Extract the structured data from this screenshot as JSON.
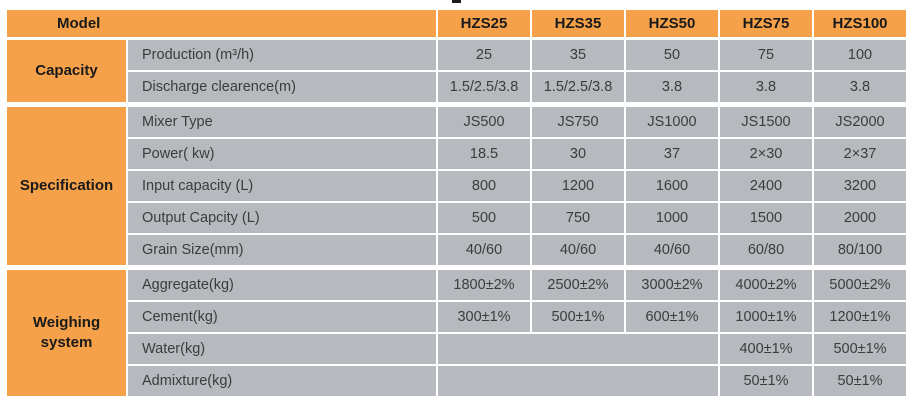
{
  "colors": {
    "orange": "#F5A149",
    "cell_gray": "#B6B9BD",
    "divider_white": "#FFFFFF",
    "heading_text": "#1A1A1A",
    "body_text": "#3C3C3C"
  },
  "table": {
    "model_header": "Model",
    "columns": [
      "HZS25",
      "HZS35",
      "HZS50",
      "HZS75",
      "HZS100"
    ],
    "sections": [
      {
        "label": "Capacity",
        "rows": [
          {
            "param": "Production (m³/h)",
            "values": [
              "25",
              "35",
              "50",
              "75",
              "100"
            ]
          },
          {
            "param": "Discharge clearence(m)",
            "values": [
              "1.5/2.5/3.8",
              "1.5/2.5/3.8",
              "3.8",
              "3.8",
              "3.8"
            ]
          }
        ]
      },
      {
        "label": "Specification",
        "rows": [
          {
            "param": "Mixer Type",
            "values": [
              "JS500",
              "JS750",
              "JS1000",
              "JS1500",
              "JS2000"
            ]
          },
          {
            "param": "Power( kw)",
            "values": [
              "18.5",
              "30",
              "37",
              "2×30",
              "2×37"
            ]
          },
          {
            "param": "Input capacity (L)",
            "values": [
              "800",
              "1200",
              "1600",
              "2400",
              "3200"
            ]
          },
          {
            "param": "Output Capcity (L)",
            "values": [
              "500",
              "750",
              "1000",
              "1500",
              "2000"
            ]
          },
          {
            "param": "Grain Size(mm)",
            "values": [
              "40/60",
              "40/60",
              "40/60",
              "60/80",
              "80/100"
            ]
          }
        ]
      },
      {
        "label": "Weighing system",
        "rows": [
          {
            "param": "Aggregate(kg)",
            "values": [
              "1800±2%",
              "2500±2%",
              "3000±2%",
              "4000±2%",
              "5000±2%"
            ]
          },
          {
            "param": "Cement(kg)",
            "values": [
              "300±1%",
              "500±1%",
              "600±1%",
              "1000±1%",
              "1200±1%"
            ]
          },
          {
            "param": "Water(kg)",
            "values": [
              "",
              "",
              "",
              "400±1%",
              "500±1%"
            ]
          },
          {
            "param": "Admixture(kg)",
            "values": [
              "",
              "",
              "",
              "50±1%",
              "50±1%"
            ]
          }
        ]
      }
    ]
  }
}
